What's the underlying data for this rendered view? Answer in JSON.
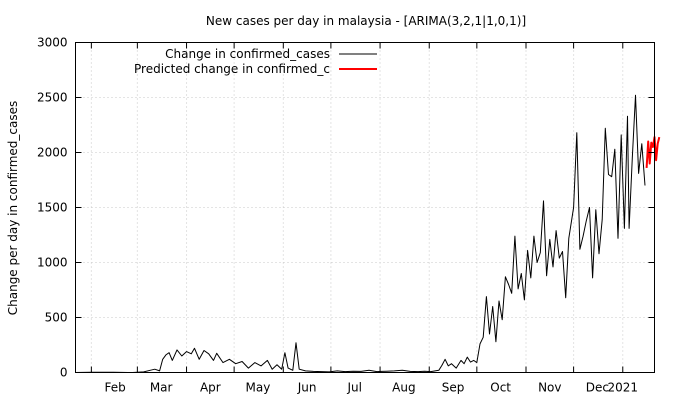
{
  "chart_data": {
    "type": "line",
    "title": "New cases per day in malaysia -  [ARIMA(3,2,1|1,0,1)]",
    "xlabel": "",
    "ylabel": "Change per day in confirmed_cases",
    "ylim": [
      0,
      3000
    ],
    "yticks": [
      0,
      500,
      1000,
      1500,
      2000,
      2500,
      3000
    ],
    "xlim": [
      "2020-01-22",
      "2021-01-21"
    ],
    "xticks": [
      {
        "date": "2020-02-01",
        "label": "Feb"
      },
      {
        "date": "2020-03-01",
        "label": "Mar"
      },
      {
        "date": "2020-04-01",
        "label": "Apr"
      },
      {
        "date": "2020-05-01",
        "label": "May"
      },
      {
        "date": "2020-06-01",
        "label": "Jun"
      },
      {
        "date": "2020-07-01",
        "label": "Jul"
      },
      {
        "date": "2020-08-01",
        "label": "Aug"
      },
      {
        "date": "2020-09-01",
        "label": "Sep"
      },
      {
        "date": "2020-10-01",
        "label": "Oct"
      },
      {
        "date": "2020-11-01",
        "label": "Nov"
      },
      {
        "date": "2020-12-01",
        "label": "Dec"
      },
      {
        "date": "2021-01-01",
        "label": "2021"
      }
    ],
    "grid": true,
    "legend_position": "top-left",
    "series": [
      {
        "name": "Change in confirmed_cases",
        "color": "#000000",
        "points": [
          [
            "2020-01-22",
            0
          ],
          [
            "2020-02-01",
            3
          ],
          [
            "2020-02-15",
            2
          ],
          [
            "2020-02-27",
            0
          ],
          [
            "2020-03-05",
            5
          ],
          [
            "2020-03-09",
            20
          ],
          [
            "2020-03-12",
            30
          ],
          [
            "2020-03-15",
            15
          ],
          [
            "2020-03-17",
            120
          ],
          [
            "2020-03-19",
            160
          ],
          [
            "2020-03-21",
            180
          ],
          [
            "2020-03-23",
            110
          ],
          [
            "2020-03-26",
            205
          ],
          [
            "2020-03-29",
            150
          ],
          [
            "2020-04-01",
            190
          ],
          [
            "2020-04-04",
            170
          ],
          [
            "2020-04-06",
            220
          ],
          [
            "2020-04-09",
            120
          ],
          [
            "2020-04-12",
            200
          ],
          [
            "2020-04-15",
            170
          ],
          [
            "2020-04-18",
            110
          ],
          [
            "2020-04-20",
            175
          ],
          [
            "2020-04-24",
            90
          ],
          [
            "2020-04-28",
            120
          ],
          [
            "2020-05-02",
            80
          ],
          [
            "2020-05-06",
            100
          ],
          [
            "2020-05-10",
            40
          ],
          [
            "2020-05-14",
            90
          ],
          [
            "2020-05-18",
            60
          ],
          [
            "2020-05-22",
            110
          ],
          [
            "2020-05-25",
            30
          ],
          [
            "2020-05-28",
            70
          ],
          [
            "2020-05-31",
            30
          ],
          [
            "2020-06-02",
            180
          ],
          [
            "2020-06-04",
            40
          ],
          [
            "2020-06-07",
            20
          ],
          [
            "2020-06-09",
            270
          ],
          [
            "2020-06-11",
            30
          ],
          [
            "2020-06-15",
            15
          ],
          [
            "2020-06-20",
            10
          ],
          [
            "2020-06-25",
            8
          ],
          [
            "2020-06-30",
            5
          ],
          [
            "2020-07-05",
            15
          ],
          [
            "2020-07-10",
            8
          ],
          [
            "2020-07-15",
            12
          ],
          [
            "2020-07-20",
            10
          ],
          [
            "2020-07-25",
            20
          ],
          [
            "2020-07-30",
            8
          ],
          [
            "2020-08-05",
            12
          ],
          [
            "2020-08-10",
            15
          ],
          [
            "2020-08-15",
            20
          ],
          [
            "2020-08-20",
            10
          ],
          [
            "2020-08-25",
            8
          ],
          [
            "2020-08-29",
            12
          ],
          [
            "2020-09-02",
            8
          ],
          [
            "2020-09-07",
            20
          ],
          [
            "2020-09-09",
            65
          ],
          [
            "2020-09-11",
            120
          ],
          [
            "2020-09-13",
            60
          ],
          [
            "2020-09-15",
            80
          ],
          [
            "2020-09-18",
            40
          ],
          [
            "2020-09-21",
            110
          ],
          [
            "2020-09-23",
            80
          ],
          [
            "2020-09-25",
            140
          ],
          [
            "2020-09-27",
            95
          ],
          [
            "2020-09-29",
            110
          ],
          [
            "2020-10-01",
            90
          ],
          [
            "2020-10-03",
            260
          ],
          [
            "2020-10-05",
            320
          ],
          [
            "2020-10-07",
            690
          ],
          [
            "2020-10-09",
            350
          ],
          [
            "2020-10-11",
            600
          ],
          [
            "2020-10-13",
            280
          ],
          [
            "2020-10-15",
            650
          ],
          [
            "2020-10-17",
            480
          ],
          [
            "2020-10-19",
            870
          ],
          [
            "2020-10-21",
            800
          ],
          [
            "2020-10-23",
            720
          ],
          [
            "2020-10-25",
            1240
          ],
          [
            "2020-10-27",
            760
          ],
          [
            "2020-10-29",
            900
          ],
          [
            "2020-10-31",
            660
          ],
          [
            "2020-11-02",
            1110
          ],
          [
            "2020-11-04",
            860
          ],
          [
            "2020-11-06",
            1240
          ],
          [
            "2020-11-08",
            1000
          ],
          [
            "2020-11-10",
            1090
          ],
          [
            "2020-11-12",
            1560
          ],
          [
            "2020-11-14",
            880
          ],
          [
            "2020-11-16",
            1210
          ],
          [
            "2020-11-18",
            960
          ],
          [
            "2020-11-20",
            1290
          ],
          [
            "2020-11-22",
            1040
          ],
          [
            "2020-11-24",
            1100
          ],
          [
            "2020-11-26",
            680
          ],
          [
            "2020-11-28",
            1220
          ],
          [
            "2020-12-01",
            1500
          ],
          [
            "2020-12-03",
            2180
          ],
          [
            "2020-12-05",
            1120
          ],
          [
            "2020-12-07",
            1240
          ],
          [
            "2020-12-09",
            1380
          ],
          [
            "2020-12-11",
            1500
          ],
          [
            "2020-12-13",
            860
          ],
          [
            "2020-12-15",
            1480
          ],
          [
            "2020-12-17",
            1080
          ],
          [
            "2020-12-19",
            1390
          ],
          [
            "2020-12-21",
            2220
          ],
          [
            "2020-12-23",
            1800
          ],
          [
            "2020-12-25",
            1780
          ],
          [
            "2020-12-27",
            2030
          ],
          [
            "2020-12-29",
            1220
          ],
          [
            "2020-12-31",
            2160
          ],
          [
            "2021-01-02",
            1310
          ],
          [
            "2021-01-04",
            2330
          ],
          [
            "2021-01-05",
            1310
          ],
          [
            "2021-01-07",
            1950
          ],
          [
            "2021-01-09",
            2520
          ],
          [
            "2021-01-11",
            1810
          ],
          [
            "2021-01-13",
            2080
          ],
          [
            "2021-01-15",
            1700
          ]
        ]
      },
      {
        "name": "Predicted change in confirmed_c",
        "color": "#ff0000",
        "points": [
          [
            "2021-01-16",
            1860
          ],
          [
            "2021-01-17",
            2100
          ],
          [
            "2021-01-18",
            1900
          ],
          [
            "2021-01-19",
            2090
          ],
          [
            "2021-01-20",
            2050
          ],
          [
            "2021-01-21",
            2140
          ],
          [
            "2021-01-22",
            1930
          ],
          [
            "2021-01-23",
            2080
          ],
          [
            "2021-01-24",
            2140
          ]
        ]
      }
    ]
  }
}
